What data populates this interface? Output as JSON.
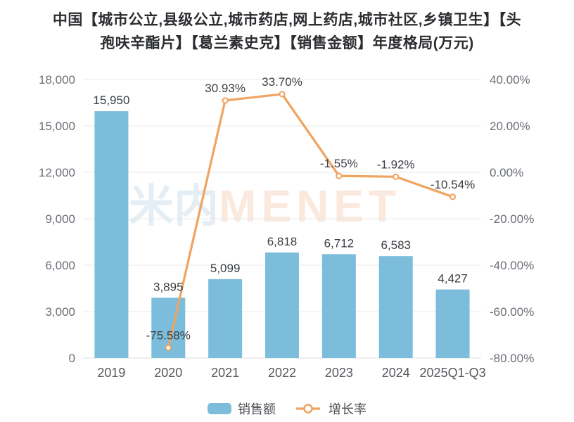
{
  "title": {
    "line1": "中国【城市公立,县级公立,城市药店,网上药店,城市社区,乡镇卫生】【头",
    "line2": "孢呋辛酯片】【葛兰素史克】【销售金额】年度格局(万元)"
  },
  "watermark": {
    "cn": "米内",
    "en": "MENET"
  },
  "colors": {
    "bar": "#7CBDDB",
    "line": "#EFA45F",
    "marker_fill": "#FFFFFF",
    "grid": "#E8E8E8",
    "axis_line": "#DCDCDC",
    "y_tick_text": "#6A6E76",
    "x_tick_text": "#54575C",
    "value_text": "#3A3E43",
    "title_text": "#2B2D30",
    "legend_text": "#4A4D52",
    "watermark_cn": "#E5EEF4",
    "watermark_en": "#FAE9DC"
  },
  "legend": {
    "items": [
      {
        "label": "销售额",
        "series_type": "bar"
      },
      {
        "label": "增长率",
        "series_type": "line"
      }
    ]
  },
  "chart_data": {
    "type": "bar+line",
    "title": "中国【城市公立,县级公立,城市药店,网上药店,城市社区,乡镇卫生】【头孢呋辛酯片】【葛兰素史克】【销售金额】年度格局(万元)",
    "categories": [
      "2019",
      "2020",
      "2021",
      "2022",
      "2023",
      "2024",
      "2025Q1-Q3"
    ],
    "series": [
      {
        "name": "销售额",
        "type": "bar",
        "y_axis": "left",
        "values": [
          15950,
          3895,
          5099,
          6818,
          6712,
          6583,
          4427
        ],
        "value_labels": [
          "15,950",
          "3,895",
          "5,099",
          "6,818",
          "6,712",
          "6,583",
          "4,427"
        ]
      },
      {
        "name": "增长率",
        "type": "line",
        "y_axis": "right",
        "values": [
          null,
          -75.58,
          30.93,
          33.7,
          -1.55,
          -1.92,
          -10.54
        ],
        "value_labels": [
          null,
          "-75.58%",
          "30.93%",
          "33.70%",
          "-1.55%",
          "-1.92%",
          "-10.54%"
        ]
      }
    ],
    "left_axis": {
      "min": 0,
      "max": 18000,
      "step": 3000,
      "tick_labels_top_to_bottom": [
        "18,000",
        "15,000",
        "12,000",
        "9,000",
        "6,000",
        "3,000",
        "0"
      ]
    },
    "right_axis": {
      "min": -80,
      "max": 40,
      "step": 20,
      "tick_labels_top_to_bottom": [
        "40.00%",
        "20.00%",
        "0.00%",
        "-20.00%",
        "-40.00%",
        "-60.00%",
        "-80.00%"
      ]
    },
    "grid": true,
    "legend_position": "bottom"
  }
}
